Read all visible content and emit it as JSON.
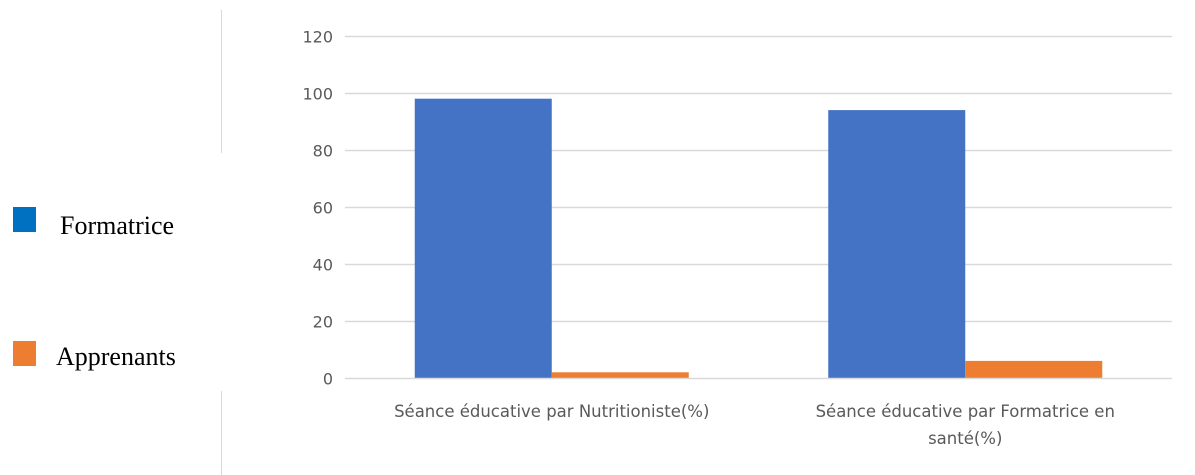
{
  "chart_data": {
    "type": "bar",
    "categories": [
      [
        "Séance éducative par Nutritioniste(%)"
      ],
      [
        "Séance éducative par Formatrice en",
        "santé(%)"
      ]
    ],
    "series": [
      {
        "name": "Formatrice",
        "values": [
          98,
          94
        ],
        "color": "#4472C4"
      },
      {
        "name": "Apprenants",
        "values": [
          2,
          6
        ],
        "color": "#ED7D31"
      }
    ],
    "legend_swatch_colors": [
      "#0070C0",
      "#ED7D31"
    ],
    "ylim": [
      0,
      120
    ],
    "yticks": [
      0,
      20,
      40,
      60,
      80,
      100,
      120
    ],
    "grid": true,
    "legend_position": "left",
    "colors": {
      "gridline": "#D9D9D9",
      "axis_line": "#D9D9D9",
      "tick_text": "#595959",
      "separator": "#D9D9D9"
    }
  }
}
